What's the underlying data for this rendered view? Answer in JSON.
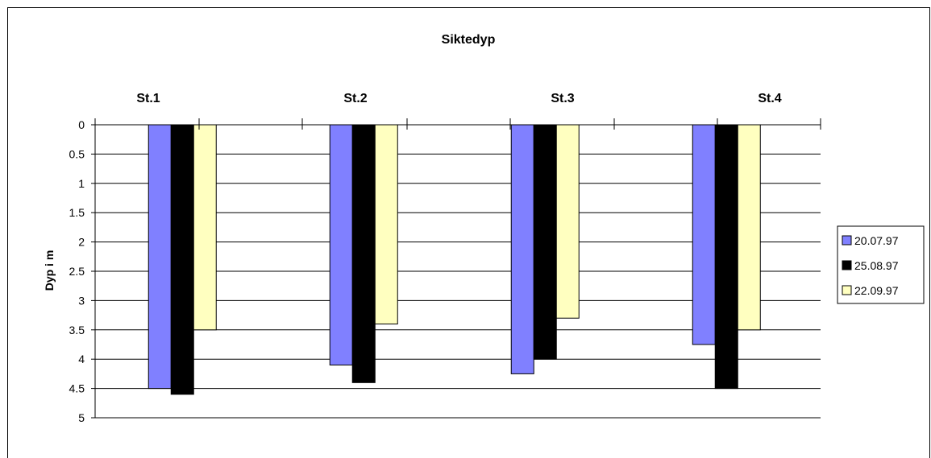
{
  "chart_data": {
    "type": "bar",
    "title": "Siktedyp",
    "ylabel": "Dyp i m",
    "categories": [
      "St.1",
      "St.2",
      "St.3",
      "St.4"
    ],
    "y_axis": {
      "min": 0,
      "max": 5,
      "reversed": true,
      "ticks": [
        "0",
        "0.5",
        "1",
        "1.5",
        "2",
        "2.5",
        "3",
        "3.5",
        "4",
        "4.5",
        "5"
      ],
      "category_labels_position": "top"
    },
    "series": [
      {
        "name": "20.07.97",
        "color": "#8080FF",
        "values": [
          4.5,
          4.1,
          4.25,
          3.75
        ]
      },
      {
        "name": "25.08.97",
        "color": "#000000",
        "values": [
          4.6,
          4.4,
          4.0,
          4.5
        ]
      },
      {
        "name": "22.09.97",
        "color": "#FFFFC0",
        "values": [
          3.5,
          3.4,
          3.3,
          3.5
        ]
      }
    ],
    "grid": true,
    "legend_position": "right"
  }
}
